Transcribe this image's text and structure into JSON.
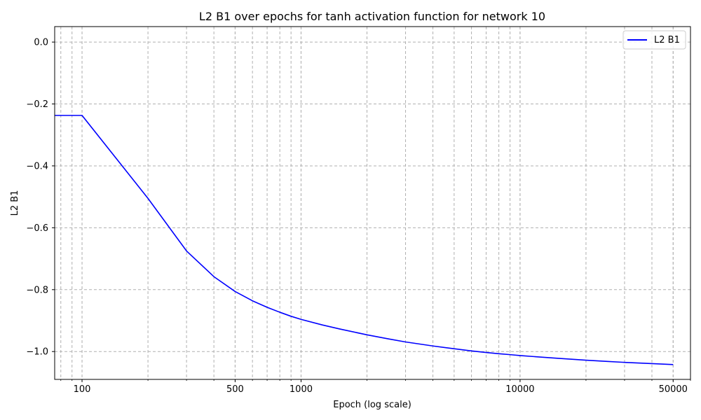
{
  "chart_data": {
    "type": "line",
    "title": "L2 B1 over epochs for tanh activation function for network 10",
    "xlabel": "Epoch (log scale)",
    "ylabel": "L2 B1",
    "xscale": "log",
    "xlim": [
      75,
      60000
    ],
    "ylim": [
      -1.09,
      0.05
    ],
    "xticks": [
      100,
      500,
      1000,
      10000,
      50000
    ],
    "xtick_labels": [
      "100",
      "500",
      "1000",
      "10000",
      "50000"
    ],
    "yticks": [
      0.0,
      -0.2,
      -0.4,
      -0.6,
      -0.8,
      -1.0
    ],
    "ytick_labels": [
      "0.0",
      "−0.2",
      "−0.4",
      "−0.6",
      "−0.8",
      "−1.0"
    ],
    "grid": true,
    "legend_position": "top-right",
    "series": [
      {
        "name": "L2 B1",
        "color": "#0000ff",
        "x": [
          1,
          100,
          200,
          300,
          400,
          500,
          600,
          700,
          800,
          900,
          1000,
          1250,
          1500,
          2000,
          2500,
          3000,
          4000,
          5000,
          6000,
          7000,
          8000,
          9000,
          10000,
          12500,
          15000,
          20000,
          25000,
          30000,
          40000,
          50000
        ],
        "y": [
          -0.237,
          -0.237,
          -0.505,
          -0.675,
          -0.758,
          -0.806,
          -0.836,
          -0.857,
          -0.873,
          -0.886,
          -0.896,
          -0.914,
          -0.927,
          -0.946,
          -0.959,
          -0.969,
          -0.982,
          -0.991,
          -0.998,
          -1.003,
          -1.007,
          -1.01,
          -1.013,
          -1.018,
          -1.022,
          -1.028,
          -1.032,
          -1.035,
          -1.039,
          -1.042
        ]
      }
    ]
  }
}
